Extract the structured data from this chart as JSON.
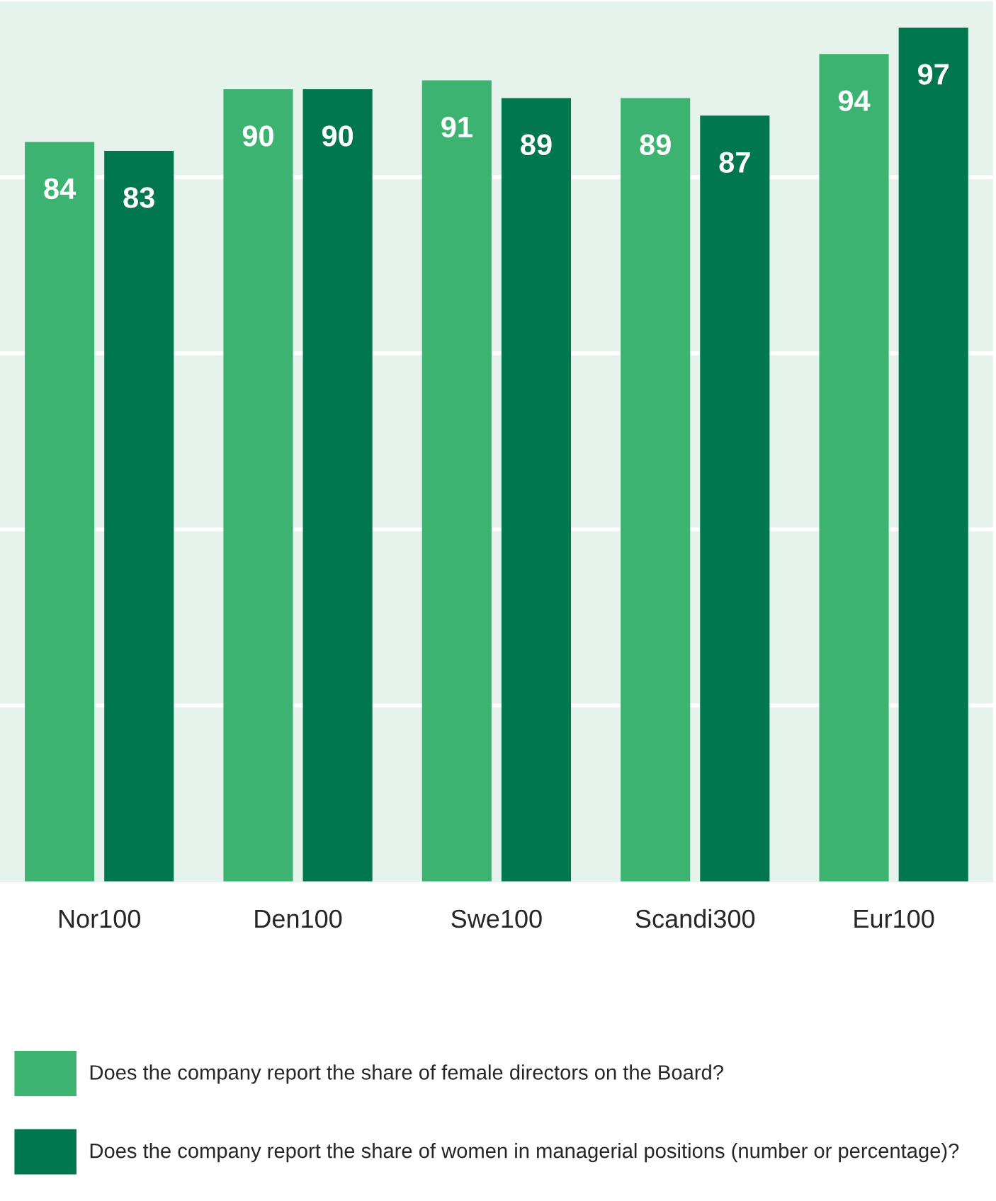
{
  "chart_data": {
    "type": "bar",
    "categories": [
      "Nor100",
      "Den100",
      "Swe100",
      "Scandi300",
      "Eur100"
    ],
    "series": [
      {
        "name": "Does the company report the share of female directors on the Board?",
        "color": "#3db371",
        "values": [
          84,
          90,
          91,
          89,
          94
        ]
      },
      {
        "name": "Does the company report the share of women in managerial positions (number or percentage)?",
        "color": "#00774f",
        "values": [
          83,
          90,
          89,
          87,
          97
        ]
      }
    ],
    "ylim": [
      0,
      100
    ],
    "yticks": [
      {
        "value": 20,
        "label": null
      },
      {
        "value": 40,
        "label": null
      },
      {
        "value": 60,
        "label": null
      },
      {
        "value": 80,
        "label": null
      }
    ],
    "tick_labels": "x",
    "grid": "y",
    "data_labels": true,
    "legend": "bottom"
  }
}
